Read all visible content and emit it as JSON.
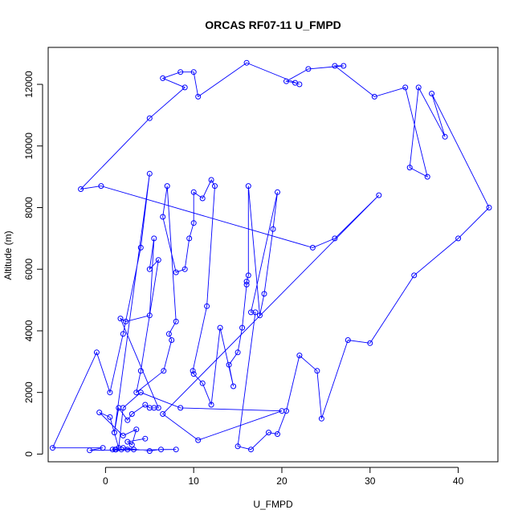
{
  "chart_data": {
    "type": "line",
    "title": "ORCAS RF07-11 U_FMPD",
    "xlabel": "U_FMPD",
    "ylabel": "Altitude (m)",
    "xlim": [
      -6.5,
      44.5
    ],
    "ylim": [
      -250,
      13200
    ],
    "xticks": [
      0,
      10,
      20,
      30,
      40
    ],
    "yticks": [
      0,
      2000,
      4000,
      6000,
      8000,
      10000,
      12000
    ],
    "ytick_labels": [
      "0",
      "2000",
      "4000",
      "6000",
      "8000",
      "10000",
      "12000"
    ],
    "grid": false,
    "legend": "none",
    "markers": "open-circle",
    "color": "#0000ff",
    "series": [
      {
        "points": [
          [
            1.2,
            150
          ],
          [
            0.8,
            150
          ],
          [
            1.1,
            150
          ],
          [
            1.8,
            150
          ],
          [
            2.5,
            150
          ],
          [
            3.2,
            150
          ],
          [
            2.0,
            200
          ],
          [
            5.0,
            100
          ],
          [
            6.3,
            150
          ],
          [
            8.0,
            150
          ],
          [
            -1.8,
            120
          ],
          [
            -0.3,
            200
          ],
          [
            -6.0,
            200
          ],
          [
            -1.0,
            3300
          ],
          [
            0.5,
            2000
          ],
          [
            2.0,
            3900
          ],
          [
            4.0,
            6700
          ],
          [
            5.0,
            9100
          ],
          [
            1.0,
            700
          ],
          [
            1.5,
            1500
          ],
          [
            2.5,
            1100
          ],
          [
            3.0,
            1300
          ],
          [
            4.5,
            1600
          ],
          [
            5.0,
            1500
          ],
          [
            5.5,
            1500
          ],
          [
            6.0,
            1500
          ],
          [
            1.7,
            4400
          ],
          [
            2.3,
            4300
          ],
          [
            5.0,
            4500
          ],
          [
            5.5,
            7000
          ],
          [
            5.0,
            6000
          ],
          [
            6.0,
            6300
          ],
          [
            4.0,
            2700
          ],
          [
            3.5,
            2000
          ],
          [
            6.6,
            2700
          ],
          [
            7.5,
            3700
          ],
          [
            7.2,
            3900
          ],
          [
            8.0,
            4300
          ],
          [
            7.0,
            8700
          ],
          [
            6.5,
            7700
          ],
          [
            8.0,
            5900
          ],
          [
            9.0,
            6000
          ],
          [
            9.5,
            7000
          ],
          [
            10.0,
            7500
          ],
          [
            10.0,
            8500
          ],
          [
            11.0,
            8300
          ],
          [
            12.0,
            8900
          ],
          [
            12.4,
            8700
          ],
          [
            11.5,
            4800
          ],
          [
            9.9,
            2700
          ],
          [
            10.0,
            2600
          ],
          [
            11.0,
            2300
          ],
          [
            12.0,
            1600
          ],
          [
            13.0,
            4100
          ],
          [
            14.5,
            2200
          ],
          [
            14.0,
            2900
          ],
          [
            15.0,
            3300
          ],
          [
            15.5,
            4100
          ],
          [
            16.0,
            5500
          ],
          [
            16.0,
            5600
          ],
          [
            16.2,
            5800
          ],
          [
            16.2,
            8700
          ],
          [
            17.5,
            4500
          ],
          [
            18.0,
            5200
          ],
          [
            19.0,
            7300
          ],
          [
            19.5,
            8500
          ],
          [
            16.5,
            4600
          ],
          [
            17.0,
            4600
          ],
          [
            15.0,
            250
          ],
          [
            16.5,
            150
          ],
          [
            18.5,
            700
          ],
          [
            19.5,
            650
          ],
          [
            20.5,
            1400
          ],
          [
            22.0,
            3200
          ],
          [
            24.0,
            2700
          ],
          [
            24.5,
            1150
          ],
          [
            27.5,
            3700
          ],
          [
            30.0,
            3600
          ],
          [
            35.0,
            5800
          ],
          [
            40.0,
            7000
          ],
          [
            43.5,
            8000
          ],
          [
            37.0,
            11700
          ],
          [
            38.5,
            10300
          ],
          [
            35.5,
            11900
          ],
          [
            34.5,
            9300
          ],
          [
            36.5,
            9000
          ],
          [
            34.0,
            11900
          ],
          [
            30.5,
            11600
          ],
          [
            26.0,
            12600
          ],
          [
            27.0,
            12600
          ],
          [
            23.0,
            12500
          ],
          [
            20.5,
            12100
          ],
          [
            21.5,
            12050
          ],
          [
            22.0,
            12000
          ],
          [
            16.0,
            12700
          ],
          [
            10.5,
            11600
          ],
          [
            10.0,
            12400
          ],
          [
            8.5,
            12400
          ],
          [
            6.5,
            12200
          ],
          [
            9.0,
            11900
          ],
          [
            5.0,
            10900
          ],
          [
            -2.8,
            8600
          ],
          [
            -0.5,
            8700
          ],
          [
            23.5,
            6700
          ],
          [
            26.0,
            7000
          ],
          [
            31.0,
            8400
          ],
          [
            6.5,
            1300
          ],
          [
            10.5,
            450
          ],
          [
            20.0,
            1400
          ],
          [
            8.5,
            1500
          ],
          [
            4.0,
            2000
          ],
          [
            2.0,
            1500
          ],
          [
            1.5,
            200
          ],
          [
            0.5,
            1200
          ],
          [
            -0.7,
            1350
          ],
          [
            2.0,
            600
          ],
          [
            3.5,
            800
          ],
          [
            3.0,
            300
          ],
          [
            2.5,
            400
          ],
          [
            4.5,
            500
          ]
        ]
      }
    ]
  }
}
